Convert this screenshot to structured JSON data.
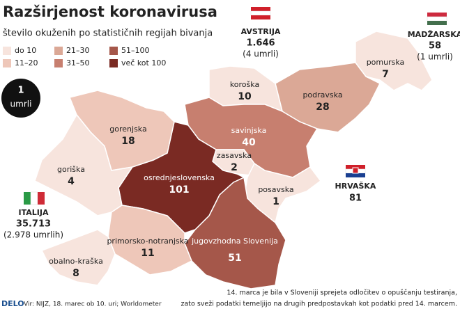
{
  "header": {
    "title": "Razširjenost koronavirusa",
    "subtitle": "število okuženih po statističnih regijah bivanja"
  },
  "legend": [
    {
      "label": "do 10",
      "color": "#f7e4dd"
    },
    {
      "label": "11–20",
      "color": "#eec7b9"
    },
    {
      "label": "21–30",
      "color": "#dba896"
    },
    {
      "label": "31–50",
      "color": "#c77f6f"
    },
    {
      "label": "51–100",
      "color": "#a5574a"
    },
    {
      "label": "več kot 100",
      "color": "#7a2a23"
    }
  ],
  "badge": {
    "value": "1",
    "label": "umrli"
  },
  "regions": [
    {
      "name": "pomurska",
      "value": 7,
      "color": "#f7e4dd"
    },
    {
      "name": "podravska",
      "value": 28,
      "color": "#dba896"
    },
    {
      "name": "koroška",
      "value": 10,
      "color": "#f7e4dd"
    },
    {
      "name": "savinjska",
      "value": 40,
      "color": "#c77f6f"
    },
    {
      "name": "zasavska",
      "value": 2,
      "color": "#f7e4dd"
    },
    {
      "name": "posavska",
      "value": 1,
      "color": "#f7e4dd"
    },
    {
      "name": "jugovzhodna Slovenija",
      "value": 51,
      "color": "#a5574a"
    },
    {
      "name": "osrednjeslovenska",
      "value": 101,
      "color": "#7a2a23"
    },
    {
      "name": "gorenjska",
      "value": 18,
      "color": "#eec7b9"
    },
    {
      "name": "goriška",
      "value": 4,
      "color": "#f7e4dd"
    },
    {
      "name": "primorsko-notranjska",
      "value": 11,
      "color": "#eec7b9"
    },
    {
      "name": "obalno-kraška",
      "value": 8,
      "color": "#f7e4dd"
    }
  ],
  "countries": [
    {
      "name": "AVSTRIJA",
      "cases": "1.646",
      "deaths": "(4 umrli)"
    },
    {
      "name": "MADŽARSKA",
      "cases": "58",
      "deaths": "(1 umrli)"
    },
    {
      "name": "HRVAŠKA",
      "cases": "81"
    },
    {
      "name": "ITALIJA",
      "cases": "35.713",
      "deaths": "(2.978 umrlih)"
    }
  ],
  "footer": {
    "logo": "DELO",
    "source": "Vir: NIJZ, 18. marec ob 10. uri; Worldometer",
    "note": [
      "14. marca je bila v Sloveniji sprejeta odločitev o opuščanju testiranja,",
      "zato sveži podatki temeljijo na drugih predpostavkah kot podatki pred 14. marcem."
    ]
  }
}
